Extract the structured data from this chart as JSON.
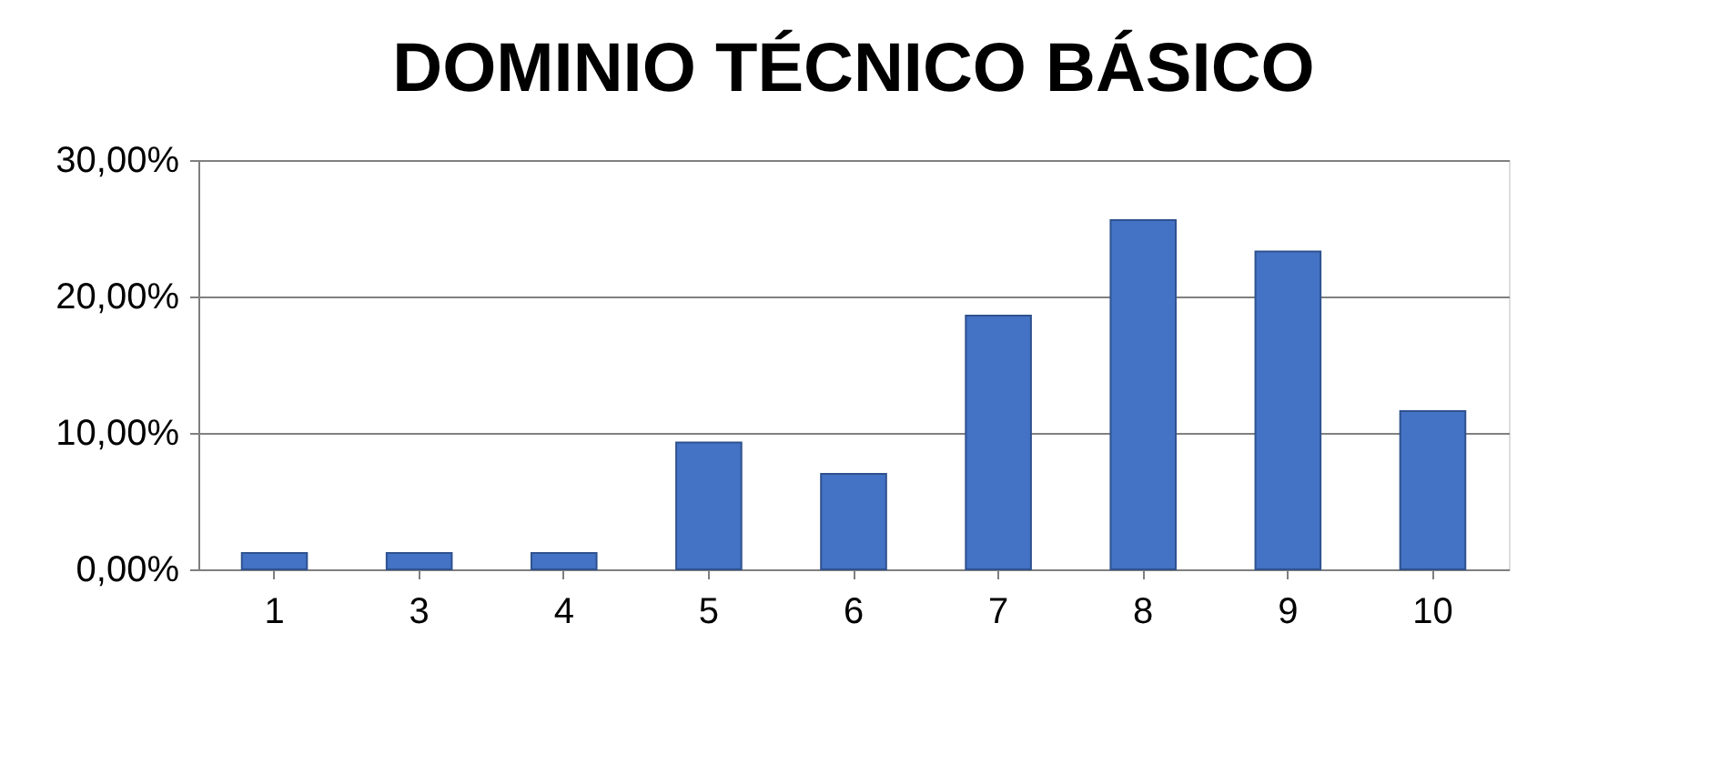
{
  "chart_data": {
    "type": "bar",
    "title": "DOMINIO TÉCNICO BÁSICO",
    "categories": [
      "1",
      "3",
      "4",
      "5",
      "6",
      "7",
      "8",
      "9",
      "10"
    ],
    "values": [
      1.2,
      1.2,
      1.2,
      9.3,
      7.0,
      18.6,
      25.6,
      23.3,
      11.6
    ],
    "color": "#4472c4",
    "ylim": [
      0,
      30
    ],
    "yticks": [
      {
        "value": 0,
        "label": "0,00%"
      },
      {
        "value": 10,
        "label": "10,00%"
      },
      {
        "value": 20,
        "label": "20,00%"
      },
      {
        "value": 30,
        "label": "30,00%"
      }
    ],
    "grid": "y"
  }
}
